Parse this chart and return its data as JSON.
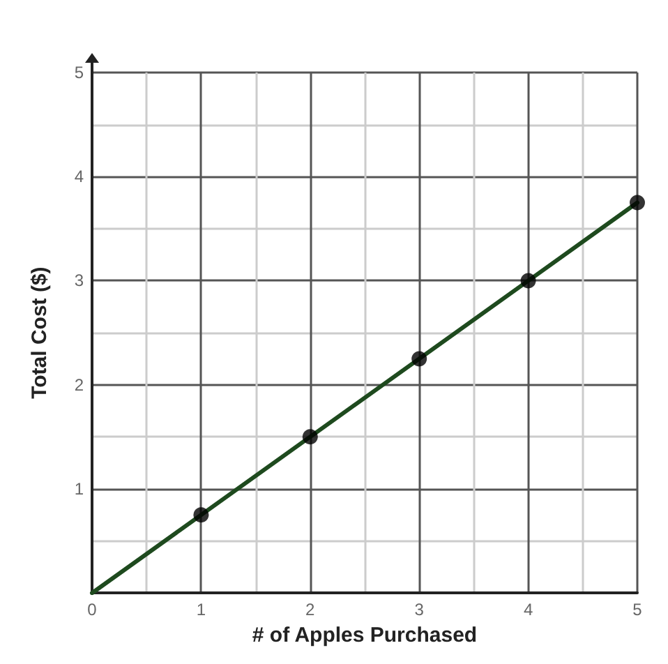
{
  "chart_data": {
    "type": "line",
    "xlabel": "# of Apples Purchased",
    "ylabel": "Total Cost ($)",
    "xlim": [
      0,
      5
    ],
    "xticks": [
      0,
      1,
      2,
      3,
      4,
      5
    ],
    "ylim": [
      0,
      5
    ],
    "yticks": [
      {
        "value": 0,
        "label": null
      },
      1,
      2,
      3,
      4,
      5
    ],
    "grid": true,
    "series": [
      {
        "x": [
          0,
          5
        ],
        "values": [
          0,
          3.75
        ],
        "color": "#1e4a1e",
        "marker": "none"
      },
      {
        "type": "scatter",
        "x": [
          1,
          2,
          3,
          4,
          5
        ],
        "values": [
          0.75,
          1.5,
          2.25,
          3,
          3.75
        ],
        "color": "#000000",
        "marker": "circle"
      }
    ]
  }
}
